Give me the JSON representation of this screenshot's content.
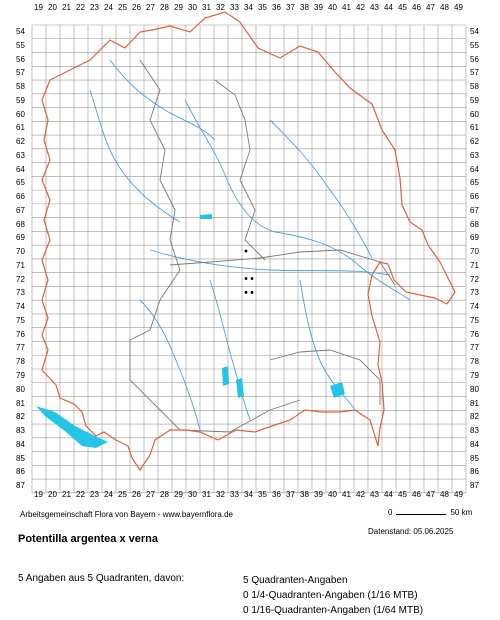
{
  "axis": {
    "top_ticks": [
      "19",
      "20",
      "21",
      "22",
      "23",
      "24",
      "25",
      "26",
      "27",
      "28",
      "29",
      "30",
      "31",
      "32",
      "33",
      "34",
      "35",
      "36",
      "37",
      "38",
      "39",
      "40",
      "41",
      "42",
      "43",
      "44",
      "45",
      "46",
      "47",
      "48",
      "49"
    ],
    "side_ticks": [
      "54",
      "55",
      "56",
      "57",
      "58",
      "59",
      "60",
      "61",
      "62",
      "63",
      "64",
      "65",
      "66",
      "67",
      "68",
      "69",
      "70",
      "71",
      "72",
      "73",
      "74",
      "75",
      "76",
      "77",
      "78",
      "79",
      "80",
      "81",
      "82",
      "83",
      "84",
      "85",
      "86",
      "87"
    ]
  },
  "colors": {
    "grid": "#9a9a9a",
    "border_state": "#e0603a",
    "border_region": "#7a7a7a",
    "rivers": "#4aa0e0",
    "lakes": "#23c4e8",
    "points": "#000000"
  },
  "occurrence_points": [
    {
      "col": "34",
      "row": "70"
    },
    {
      "col": "34",
      "row": "72"
    },
    {
      "col": "34",
      "row": "72"
    },
    {
      "col": "34",
      "row": "73"
    },
    {
      "col": "34",
      "row": "73"
    }
  ],
  "footer": {
    "credit": "Arbeitsgemeinschaft Flora von Bayern - www.bayernflora.de",
    "scale_start": "0",
    "scale_end": "50 km",
    "date": "Datenstand: 05.06.2025",
    "species": "Potentilla argentea x verna",
    "summary": "5 Angaben aus 5 Quadranten, davon:",
    "quadrant_lines": [
      "5 Quadranten-Angaben",
      "0 1/4-Quadranten-Angaben (1/16 MTB)",
      "0 1/16-Quadranten-Angaben (1/64 MTB)"
    ]
  }
}
